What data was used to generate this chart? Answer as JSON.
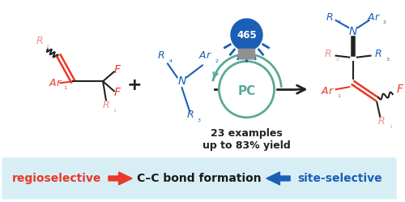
{
  "bg_color": "#ffffff",
  "banner_bg": "#d8eef5",
  "banner_text_left": "regioselective",
  "banner_text_left_color": "#e8392a",
  "banner_text_center": "C–C bond formation",
  "banner_text_center_color": "#1a1a1a",
  "banner_text_right": "site-selective",
  "banner_text_right_color": "#1a5fb5",
  "arrow_left_color": "#e8392a",
  "arrow_right_color": "#1a5fb5",
  "pc_circle_color": "#5aaa96",
  "lightbulb_text": "465",
  "examples_text_line1": "23 examples",
  "examples_text_line2": "up to 83% yield",
  "red_color": "#e8392a",
  "light_red_color": "#e89090",
  "blue_color": "#1a5fb5",
  "dark_color": "#222222",
  "gray_color": "#888888"
}
